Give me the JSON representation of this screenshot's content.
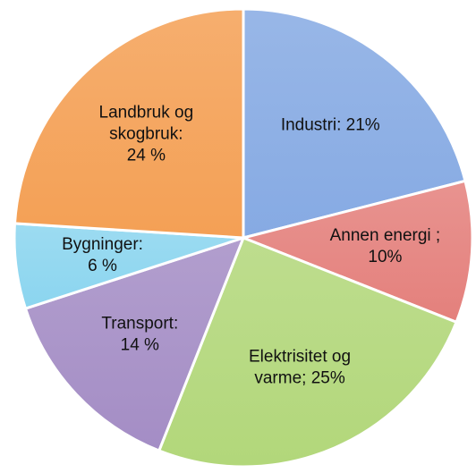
{
  "chart_data": {
    "type": "pie",
    "values": [
      21,
      10,
      25,
      14,
      6,
      24
    ],
    "value_labels": [
      [
        "Industri: 21%"
      ],
      [
        "Annen energi ;",
        "10%"
      ],
      [
        "Elektrisitet og",
        "varme; 25%"
      ],
      [
        "Transport:",
        "14 %"
      ],
      [
        "Bygninger:",
        "6 %"
      ],
      [
        "Landbruk og",
        "skogbruk:",
        "24 %"
      ]
    ],
    "colors": [
      "#86aae3",
      "#e4807c",
      "#b2d77a",
      "#a48dc5",
      "#8bd5ef",
      "#f4a055"
    ]
  }
}
